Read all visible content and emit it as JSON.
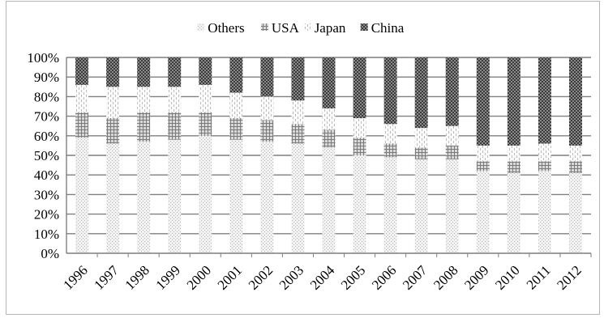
{
  "chart_data": {
    "type": "bar",
    "stacked": true,
    "percent_stacked": true,
    "categories": [
      "1996",
      "1997",
      "1998",
      "1999",
      "2000",
      "2001",
      "2002",
      "2003",
      "2004",
      "2005",
      "2006",
      "2007",
      "2008",
      "2009",
      "2010",
      "2011",
      "2012"
    ],
    "series": [
      {
        "name": "Others",
        "pattern": "dots-light",
        "values": [
          59,
          56,
          57,
          58,
          60,
          58,
          57,
          56,
          54,
          50,
          49,
          48,
          48,
          42,
          41,
          42,
          41
        ]
      },
      {
        "name": "USA",
        "pattern": "cross-hatch",
        "values": [
          13,
          13,
          15,
          14,
          12,
          11,
          11,
          10,
          9,
          9,
          7,
          6,
          7,
          5,
          6,
          5,
          6
        ]
      },
      {
        "name": "Japan",
        "pattern": "dashes-light",
        "values": [
          14,
          16,
          13,
          13,
          14,
          13,
          12,
          12,
          11,
          10,
          10,
          10,
          10,
          8,
          8,
          9,
          8
        ]
      },
      {
        "name": "China",
        "pattern": "checker-dark",
        "values": [
          14,
          15,
          15,
          15,
          14,
          18,
          20,
          22,
          26,
          31,
          34,
          36,
          35,
          45,
          45,
          44,
          45
        ]
      }
    ],
    "ylim": [
      0,
      100
    ],
    "y_ticks": [
      "0%",
      "10%",
      "20%",
      "30%",
      "40%",
      "50%",
      "60%",
      "70%",
      "80%",
      "90%",
      "100%"
    ],
    "grid": true,
    "legend_position": "top-center"
  }
}
